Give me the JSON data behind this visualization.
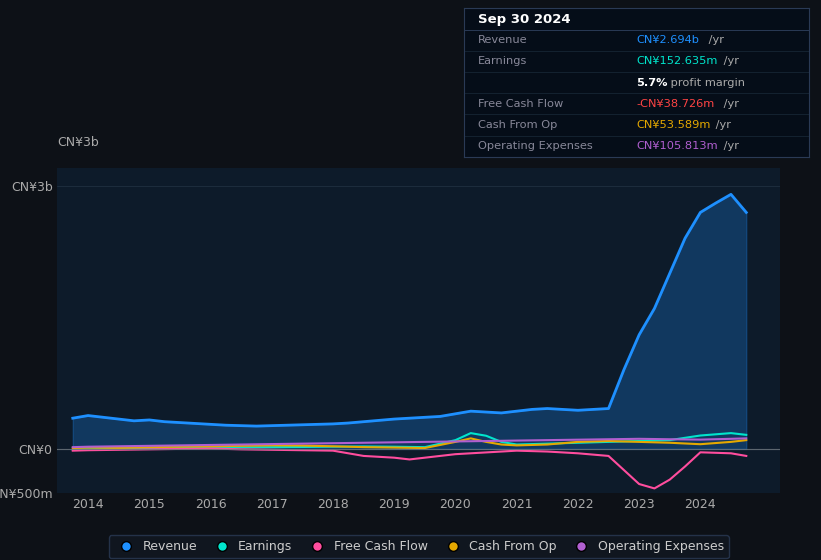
{
  "background_color": "#0d1117",
  "plot_bg_color": "#0d1b2a",
  "ylabel_top": "CN¥3b",
  "ylim": [
    -500000000,
    3200000000
  ],
  "yticks": [
    -500000000,
    0,
    3000000000
  ],
  "ytick_labels": [
    "-CN¥500m",
    "CN¥0",
    "CN¥3b"
  ],
  "xlim_start": 2013.5,
  "xlim_end": 2025.3,
  "xticks": [
    2014,
    2015,
    2016,
    2017,
    2018,
    2019,
    2020,
    2021,
    2022,
    2023,
    2024
  ],
  "legend_items": [
    "Revenue",
    "Earnings",
    "Free Cash Flow",
    "Cash From Op",
    "Operating Expenses"
  ],
  "legend_colors": [
    "#1e90ff",
    "#00e5cc",
    "#ff4d9e",
    "#e5a800",
    "#b05fd0"
  ],
  "info_box": {
    "title": "Sep 30 2024",
    "rows": [
      {
        "label": "Revenue",
        "value": "CN¥2.694b",
        "value_color": "#1e90ff",
        "suffix": " /yr"
      },
      {
        "label": "Earnings",
        "value": "CN¥152.635m",
        "value_color": "#00e5cc",
        "suffix": " /yr"
      },
      {
        "label": "",
        "value": "5.7%",
        "value_color": "#ffffff",
        "suffix": " profit margin"
      },
      {
        "label": "Free Cash Flow",
        "value": "-CN¥38.726m",
        "value_color": "#ff4444",
        "suffix": " /yr"
      },
      {
        "label": "Cash From Op",
        "value": "CN¥53.589m",
        "value_color": "#e5a800",
        "suffix": " /yr"
      },
      {
        "label": "Operating Expenses",
        "value": "CN¥105.813m",
        "value_color": "#b05fd0",
        "suffix": " /yr"
      }
    ]
  },
  "revenue": {
    "color": "#1e90ff",
    "lw": 2.0,
    "years": [
      2013.75,
      2014,
      2014.25,
      2014.5,
      2014.75,
      2015,
      2015.25,
      2015.5,
      2015.75,
      2016,
      2016.25,
      2016.5,
      2016.75,
      2017,
      2017.25,
      2017.5,
      2017.75,
      2018,
      2018.25,
      2018.5,
      2018.75,
      2019,
      2019.25,
      2019.5,
      2019.75,
      2020,
      2020.25,
      2020.5,
      2020.75,
      2021,
      2021.25,
      2021.5,
      2021.75,
      2022,
      2022.25,
      2022.5,
      2022.75,
      2023,
      2023.25,
      2023.5,
      2023.75,
      2024,
      2024.25,
      2024.5,
      2024.75
    ],
    "values": [
      350000000,
      380000000,
      360000000,
      340000000,
      320000000,
      330000000,
      310000000,
      300000000,
      290000000,
      280000000,
      270000000,
      265000000,
      260000000,
      265000000,
      270000000,
      275000000,
      280000000,
      285000000,
      295000000,
      310000000,
      325000000,
      340000000,
      350000000,
      360000000,
      370000000,
      400000000,
      430000000,
      420000000,
      410000000,
      430000000,
      450000000,
      460000000,
      450000000,
      440000000,
      450000000,
      460000000,
      900000000,
      1300000000,
      1600000000,
      2000000000,
      2400000000,
      2694000000,
      2800000000,
      2900000000,
      2694000000
    ]
  },
  "earnings": {
    "color": "#00e5cc",
    "lw": 1.5,
    "years": [
      2013.75,
      2014,
      2014.5,
      2015,
      2015.5,
      2016,
      2016.5,
      2017,
      2017.5,
      2018,
      2018.5,
      2019,
      2019.5,
      2020,
      2020.25,
      2020.5,
      2020.75,
      2021,
      2021.5,
      2022,
      2022.5,
      2023,
      2023.5,
      2024,
      2024.5,
      2024.75
    ],
    "values": [
      -10000000,
      -5000000,
      0,
      5000000,
      10000000,
      15000000,
      18000000,
      20000000,
      22000000,
      25000000,
      28000000,
      25000000,
      20000000,
      100000000,
      180000000,
      150000000,
      80000000,
      50000000,
      60000000,
      70000000,
      80000000,
      90000000,
      100000000,
      152635000,
      180000000,
      160000000
    ]
  },
  "free_cash_flow": {
    "color": "#ff4d9e",
    "lw": 1.5,
    "years": [
      2013.75,
      2014,
      2014.5,
      2015,
      2015.5,
      2016,
      2016.5,
      2017,
      2017.5,
      2018,
      2018.5,
      2019,
      2019.25,
      2019.5,
      2019.75,
      2020,
      2020.5,
      2021,
      2021.5,
      2022,
      2022.5,
      2023,
      2023.25,
      2023.5,
      2023.75,
      2024,
      2024.5,
      2024.75
    ],
    "values": [
      -20000000,
      -15000000,
      -10000000,
      -5000000,
      0,
      5000000,
      -5000000,
      -10000000,
      -15000000,
      -20000000,
      -80000000,
      -100000000,
      -120000000,
      -100000000,
      -80000000,
      -60000000,
      -40000000,
      -20000000,
      -30000000,
      -50000000,
      -80000000,
      -400000000,
      -450000000,
      -350000000,
      -200000000,
      -38726000,
      -50000000,
      -80000000
    ]
  },
  "cash_from_op": {
    "color": "#e5a800",
    "lw": 1.5,
    "years": [
      2013.75,
      2014,
      2014.5,
      2015,
      2015.5,
      2016,
      2016.5,
      2017,
      2017.5,
      2018,
      2018.5,
      2019,
      2019.5,
      2020,
      2020.25,
      2020.5,
      2020.75,
      2021,
      2021.5,
      2022,
      2022.5,
      2023,
      2023.5,
      2024,
      2024.5,
      2024.75
    ],
    "values": [
      10000000,
      15000000,
      12000000,
      20000000,
      25000000,
      30000000,
      35000000,
      40000000,
      38000000,
      30000000,
      20000000,
      15000000,
      10000000,
      80000000,
      120000000,
      80000000,
      50000000,
      40000000,
      50000000,
      80000000,
      90000000,
      80000000,
      70000000,
      53589000,
      80000000,
      100000000
    ]
  },
  "op_expenses": {
    "color": "#b05fd0",
    "lw": 1.5,
    "years": [
      2013.75,
      2014,
      2014.5,
      2015,
      2015.5,
      2016,
      2016.5,
      2017,
      2017.5,
      2018,
      2018.5,
      2019,
      2019.5,
      2020,
      2020.5,
      2021,
      2021.5,
      2022,
      2022.5,
      2023,
      2023.5,
      2024,
      2024.5,
      2024.75
    ],
    "values": [
      20000000,
      25000000,
      30000000,
      35000000,
      40000000,
      45000000,
      50000000,
      55000000,
      60000000,
      65000000,
      70000000,
      75000000,
      80000000,
      85000000,
      90000000,
      95000000,
      100000000,
      105000000,
      110000000,
      115000000,
      110000000,
      105813000,
      115000000,
      120000000
    ]
  }
}
